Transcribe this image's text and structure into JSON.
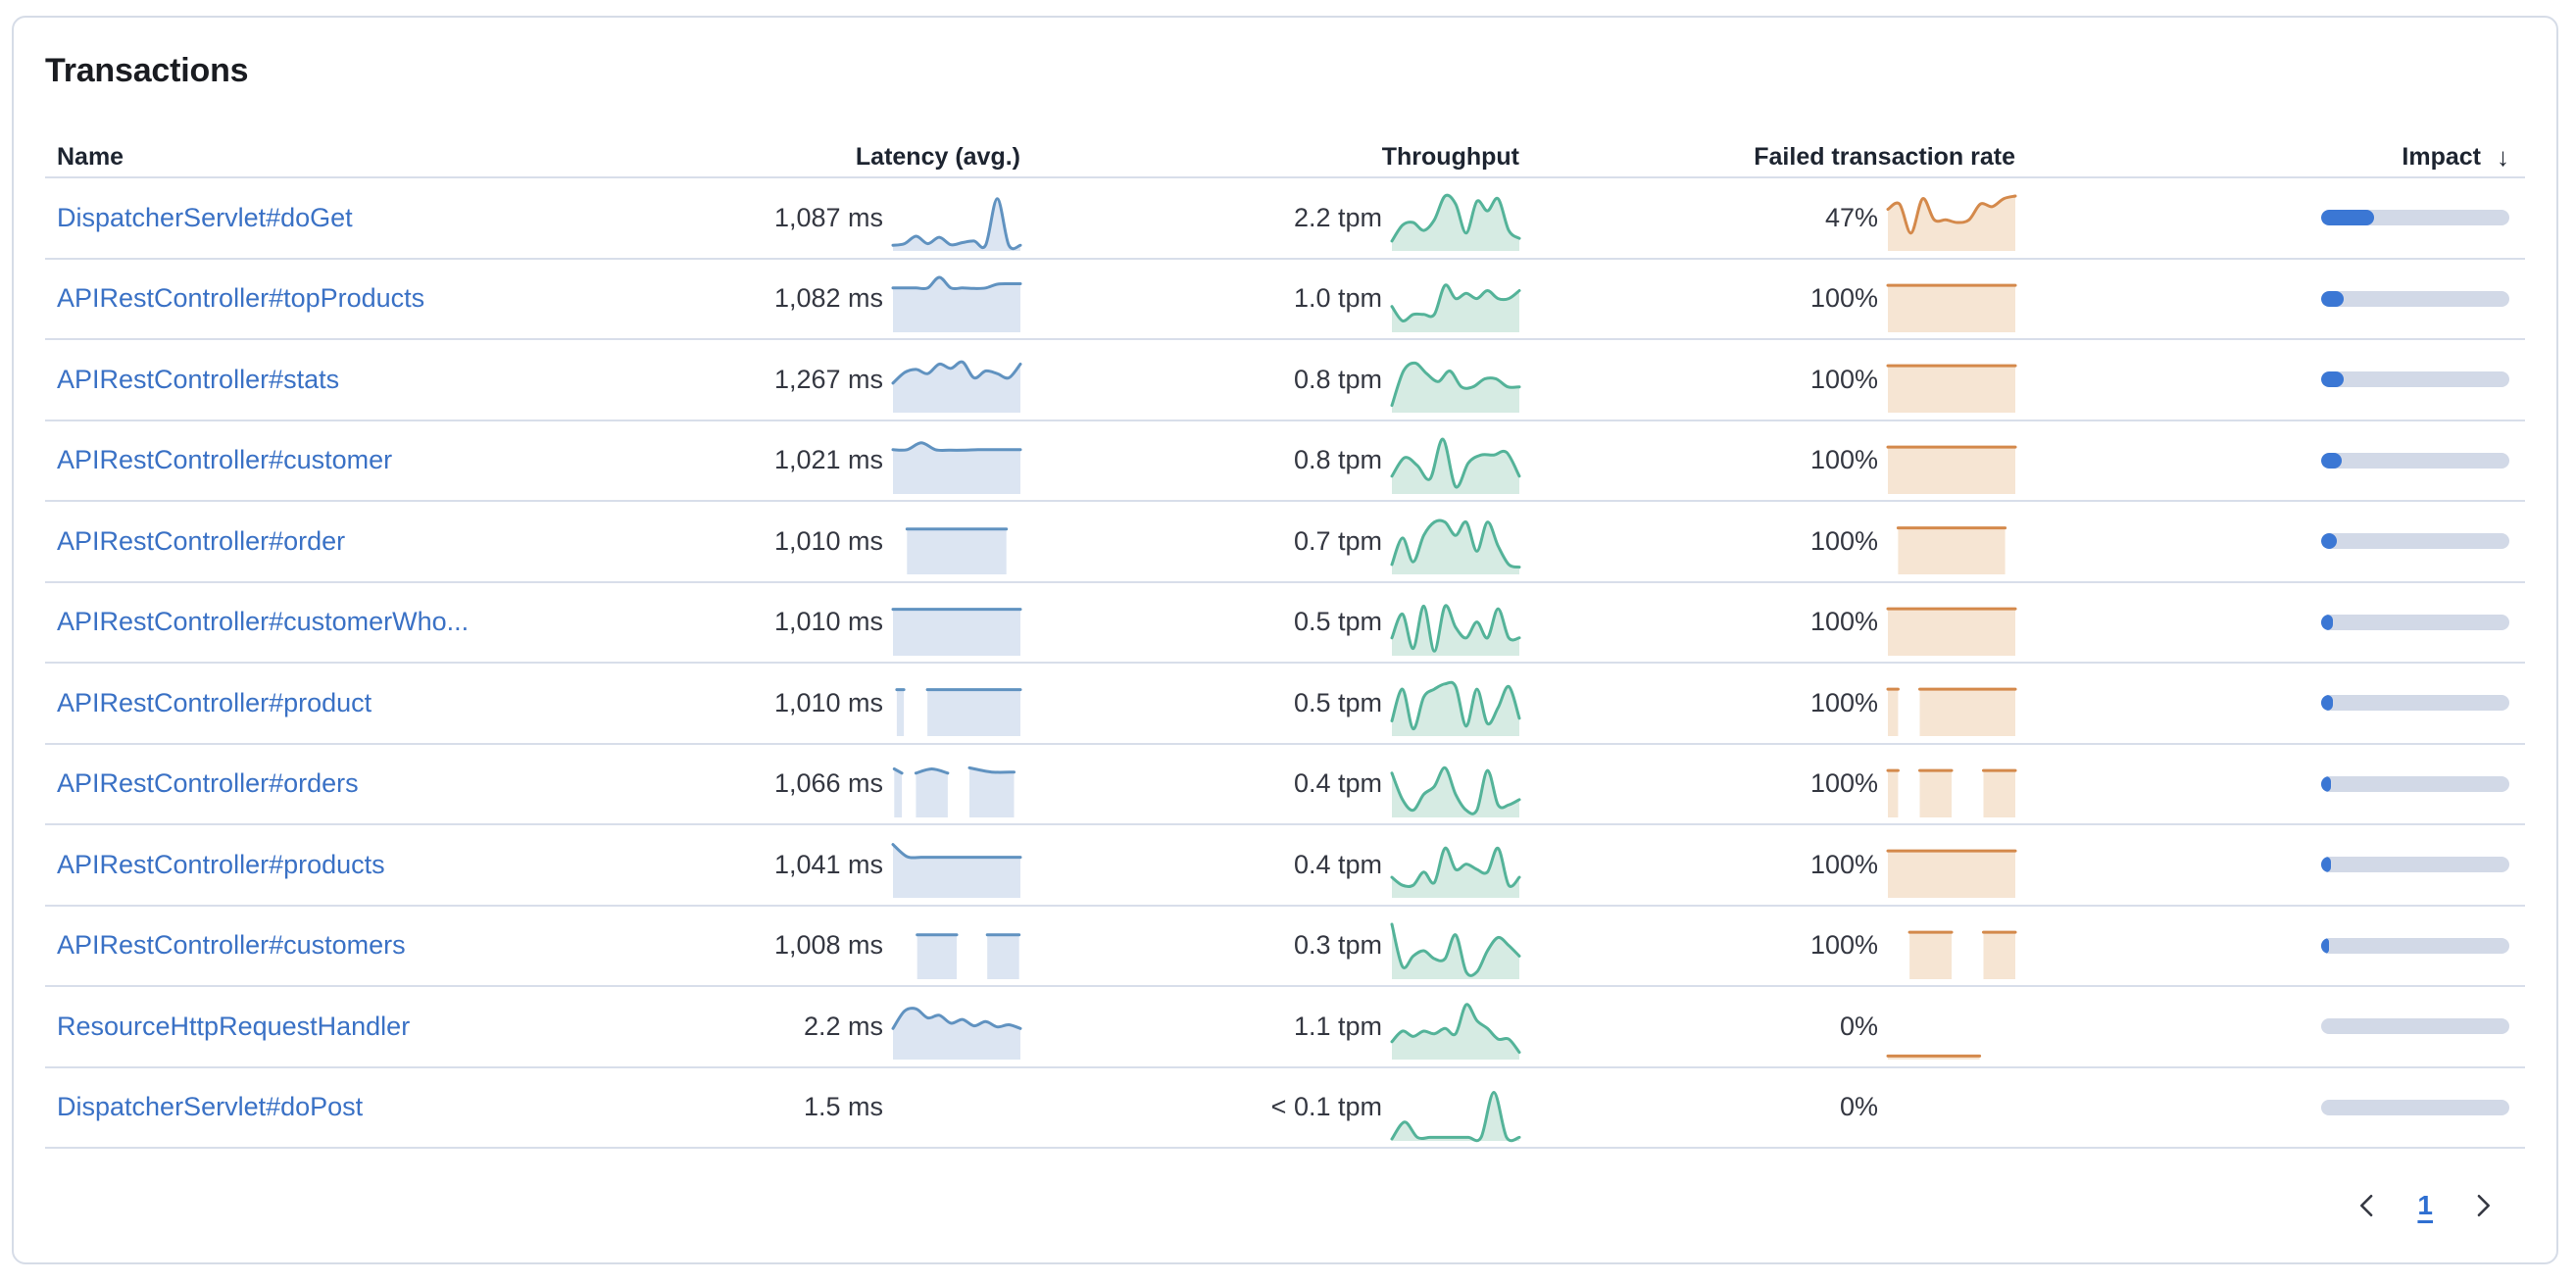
{
  "panel": {
    "title": "Transactions"
  },
  "table": {
    "columns": [
      {
        "label": "Name"
      },
      {
        "label": "Latency (avg.)"
      },
      {
        "label": "Throughput"
      },
      {
        "label": "Failed transaction rate"
      },
      {
        "label": "Impact"
      }
    ],
    "sort_icon": "↓",
    "rows": [
      {
        "name": "DispatcherServlet#doGet",
        "latency": "1,087 ms",
        "throughput": "2.2 tpm",
        "failed_rate": "47%",
        "impact_pct": 28,
        "latency_spark": {
          "segments": [
            {
              "x0": 0,
              "x1": 1,
              "v": [
                0.07,
                0.1,
                0.24,
                0.1,
                0.22,
                0.08,
                0.12,
                0.15,
                0.07,
                0.95,
                0.07,
                0.07
              ]
            }
          ]
        },
        "throughput_spark": {
          "segments": [
            {
              "x0": 0,
              "x1": 1,
              "v": [
                0.15,
                0.45,
                0.5,
                0.35,
                0.55,
                1.0,
                0.85,
                0.3,
                0.9,
                0.72,
                0.95,
                0.35,
                0.2
              ]
            }
          ]
        },
        "failed_spark": {
          "segments": [
            {
              "x0": 0,
              "x1": 1,
              "v": [
                0.75,
                0.85,
                0.3,
                0.95,
                0.55,
                0.55,
                0.5,
                0.55,
                0.85,
                0.8,
                0.95,
                1.0
              ]
            }
          ]
        }
      },
      {
        "name": "APIRestController#topProducts",
        "latency": "1,082 ms",
        "throughput": "1.0 tpm",
        "failed_rate": "100%",
        "impact_pct": 12,
        "latency_spark": {
          "segments": [
            {
              "x0": 0,
              "x1": 1,
              "v": [
                0.8,
                0.8,
                0.8,
                0.8,
                1.0,
                0.8,
                0.8,
                0.79,
                0.8,
                0.87,
                0.88,
                0.88
              ]
            }
          ]
        },
        "throughput_spark": {
          "segments": [
            {
              "x0": 0,
              "x1": 1,
              "v": [
                0.45,
                0.18,
                0.3,
                0.3,
                0.3,
                0.85,
                0.6,
                0.7,
                0.6,
                0.75,
                0.6,
                0.6,
                0.75
              ]
            }
          ]
        },
        "failed_spark": {
          "segments": [
            {
              "x0": 0,
              "x1": 1,
              "v": [
                0.85,
                0.85
              ]
            }
          ]
        }
      },
      {
        "name": "APIRestController#stats",
        "latency": "1,267 ms",
        "throughput": "0.8 tpm",
        "failed_rate": "100%",
        "impact_pct": 12,
        "latency_spark": {
          "segments": [
            {
              "x0": 0,
              "x1": 1,
              "v": [
                0.52,
                0.72,
                0.78,
                0.7,
                0.88,
                0.8,
                0.92,
                0.62,
                0.75,
                0.7,
                0.62,
                0.88
              ]
            }
          ]
        },
        "throughput_spark": {
          "segments": [
            {
              "x0": 0,
              "x1": 1,
              "v": [
                0.1,
                0.75,
                0.9,
                0.7,
                0.55,
                0.75,
                0.45,
                0.45,
                0.6,
                0.6,
                0.45,
                0.45
              ]
            }
          ]
        },
        "failed_spark": {
          "segments": [
            {
              "x0": 0,
              "x1": 1,
              "v": [
                0.85,
                0.85
              ]
            }
          ]
        }
      },
      {
        "name": "APIRestController#customer",
        "latency": "1,021 ms",
        "throughput": "0.8 tpm",
        "failed_rate": "100%",
        "impact_pct": 11,
        "latency_spark": {
          "segments": [
            {
              "x0": 0,
              "x1": 1,
              "v": [
                0.8,
                0.8,
                0.93,
                0.8,
                0.79,
                0.79,
                0.8,
                0.8,
                0.8,
                0.8
              ]
            }
          ]
        },
        "throughput_spark": {
          "segments": [
            {
              "x0": 0,
              "x1": 1,
              "v": [
                0.3,
                0.65,
                0.5,
                0.25,
                1.0,
                0.1,
                0.55,
                0.7,
                0.7,
                0.75,
                0.3
              ]
            }
          ]
        },
        "failed_spark": {
          "segments": [
            {
              "x0": 0,
              "x1": 1,
              "v": [
                0.85,
                0.85
              ]
            }
          ]
        }
      },
      {
        "name": "APIRestController#order",
        "latency": "1,010 ms",
        "throughput": "0.7 tpm",
        "failed_rate": "100%",
        "impact_pct": 8.5,
        "latency_spark": {
          "segments": [
            {
              "x0": 0.11,
              "x1": 0.89,
              "v": [
                0.82,
                0.82
              ]
            }
          ]
        },
        "throughput_spark": {
          "segments": [
            {
              "x0": 0,
              "x1": 1,
              "v": [
                0.15,
                0.65,
                0.2,
                0.7,
                0.95,
                0.95,
                0.7,
                0.95,
                0.4,
                0.95,
                0.5,
                0.15,
                0.1
              ]
            }
          ]
        },
        "failed_spark": {
          "segments": [
            {
              "x0": 0.08,
              "x1": 0.92,
              "v": [
                0.84,
                0.84
              ]
            }
          ]
        }
      },
      {
        "name": "APIRestController#customerWho...",
        "latency": "1,010 ms",
        "throughput": "0.5 tpm",
        "failed_rate": "100%",
        "impact_pct": 6,
        "latency_spark": {
          "segments": [
            {
              "x0": 0,
              "x1": 1,
              "v": [
                0.84,
                0.84
              ]
            }
          ]
        },
        "throughput_spark": {
          "segments": [
            {
              "x0": 0,
              "x1": 1,
              "v": [
                0.3,
                0.75,
                0.1,
                0.9,
                0.05,
                0.9,
                0.5,
                0.3,
                0.6,
                0.3,
                0.85,
                0.3,
                0.3
              ]
            }
          ]
        },
        "failed_spark": {
          "segments": [
            {
              "x0": 0,
              "x1": 1,
              "v": [
                0.85,
                0.85
              ]
            }
          ]
        }
      },
      {
        "name": "APIRestController#product",
        "latency": "1,010 ms",
        "throughput": "0.5 tpm",
        "failed_rate": "100%",
        "impact_pct": 6,
        "latency_spark": {
          "segments": [
            {
              "x0": 0.03,
              "x1": 0.085,
              "v": [
                0.84,
                0.84
              ]
            },
            {
              "x0": 0.27,
              "x1": 1,
              "v": [
                0.84,
                0.84
              ]
            }
          ]
        },
        "throughput_spark": {
          "segments": [
            {
              "x0": 0,
              "x1": 1,
              "v": [
                0.25,
                0.85,
                0.1,
                0.7,
                0.85,
                0.95,
                0.9,
                0.15,
                0.85,
                0.2,
                0.5,
                0.9,
                0.3
              ]
            }
          ]
        },
        "failed_spark": {
          "segments": [
            {
              "x0": 0,
              "x1": 0.08,
              "v": [
                0.85,
                0.85
              ]
            },
            {
              "x0": 0.25,
              "x1": 1,
              "v": [
                0.85,
                0.85
              ]
            }
          ]
        }
      },
      {
        "name": "APIRestController#orders",
        "latency": "1,066 ms",
        "throughput": "0.4 tpm",
        "failed_rate": "100%",
        "impact_pct": 5.2,
        "latency_spark": {
          "segments": [
            {
              "x0": 0.01,
              "x1": 0.07,
              "v": [
                0.88,
                0.8
              ]
            },
            {
              "x0": 0.18,
              "x1": 0.43,
              "v": [
                0.8,
                0.88,
                0.8
              ]
            },
            {
              "x0": 0.6,
              "x1": 0.95,
              "v": [
                0.9,
                0.82,
                0.82
              ]
            }
          ]
        },
        "throughput_spark": {
          "segments": [
            {
              "x0": 0,
              "x1": 1,
              "v": [
                0.8,
                0.3,
                0.1,
                0.4,
                0.55,
                0.9,
                0.4,
                0.1,
                0.1,
                0.85,
                0.2,
                0.2,
                0.3
              ]
            }
          ]
        },
        "failed_spark": {
          "segments": [
            {
              "x0": 0,
              "x1": 0.08,
              "v": [
                0.85,
                0.85
              ]
            },
            {
              "x0": 0.25,
              "x1": 0.5,
              "v": [
                0.85,
                0.85
              ]
            },
            {
              "x0": 0.75,
              "x1": 1,
              "v": [
                0.85,
                0.85
              ]
            }
          ]
        }
      },
      {
        "name": "APIRestController#products",
        "latency": "1,041 ms",
        "throughput": "0.4 tpm",
        "failed_rate": "100%",
        "impact_pct": 5.2,
        "latency_spark": {
          "segments": [
            {
              "x0": 0,
              "x1": 1,
              "v": [
                0.97,
                0.74,
                0.73,
                0.73,
                0.73,
                0.73,
                0.73,
                0.73,
                0.73,
                0.73
              ]
            }
          ]
        },
        "throughput_spark": {
          "segments": [
            {
              "x0": 0,
              "x1": 1,
              "v": [
                0.35,
                0.2,
                0.2,
                0.45,
                0.25,
                0.9,
                0.5,
                0.6,
                0.5,
                0.45,
                0.9,
                0.2,
                0.35
              ]
            }
          ]
        },
        "failed_spark": {
          "segments": [
            {
              "x0": 0,
              "x1": 1,
              "v": [
                0.85,
                0.85
              ]
            }
          ]
        }
      },
      {
        "name": "APIRestController#customers",
        "latency": "1,008 ms",
        "throughput": "0.3 tpm",
        "failed_rate": "100%",
        "impact_pct": 4,
        "latency_spark": {
          "segments": [
            {
              "x0": 0.19,
              "x1": 0.5,
              "v": [
                0.8,
                0.8
              ]
            },
            {
              "x0": 0.74,
              "x1": 0.99,
              "v": [
                0.8,
                0.8
              ]
            }
          ]
        },
        "throughput_spark": {
          "segments": [
            {
              "x0": 0,
              "x1": 1,
              "v": [
                1.0,
                0.2,
                0.4,
                0.5,
                0.35,
                0.35,
                0.8,
                0.1,
                0.1,
                0.5,
                0.75,
                0.6,
                0.4
              ]
            }
          ]
        },
        "failed_spark": {
          "segments": [
            {
              "x0": 0.17,
              "x1": 0.5,
              "v": [
                0.85,
                0.85
              ]
            },
            {
              "x0": 0.75,
              "x1": 1,
              "v": [
                0.85,
                0.85
              ]
            }
          ]
        }
      },
      {
        "name": "ResourceHttpRequestHandler",
        "latency": "2.2 ms",
        "throughput": "1.1 tpm",
        "failed_rate": "0%",
        "impact_pct": 0,
        "latency_spark": {
          "segments": [
            {
              "x0": 0,
              "x1": 1,
              "v": [
                0.55,
                0.88,
                0.92,
                0.75,
                0.8,
                0.65,
                0.72,
                0.6,
                0.68,
                0.58,
                0.62,
                0.55
              ]
            }
          ]
        },
        "throughput_spark": {
          "segments": [
            {
              "x0": 0,
              "x1": 1,
              "v": [
                0.3,
                0.5,
                0.4,
                0.5,
                0.45,
                0.55,
                0.45,
                1.0,
                0.7,
                0.55,
                0.35,
                0.35,
                0.1
              ]
            }
          ]
        },
        "failed_spark": {
          "segments": [
            {
              "x0": 0,
              "x1": 0.72,
              "v": [
                0.03,
                0.03
              ]
            }
          ]
        }
      },
      {
        "name": "DispatcherServlet#doPost",
        "latency": "1.5 ms",
        "throughput": "< 0.1 tpm",
        "failed_rate": "0%",
        "impact_pct": 0,
        "latency_spark": null,
        "throughput_spark": {
          "segments": [
            {
              "x0": 0,
              "x1": 1,
              "v": [
                0.0,
                0.32,
                0.03,
                0.03,
                0.03,
                0.03,
                0.03,
                0.03,
                0.88,
                0.03,
                0.03
              ]
            }
          ]
        },
        "failed_spark": null
      }
    ]
  },
  "pagination": {
    "current_page": "1"
  },
  "colors": {
    "latency_line": "#6092C0",
    "latency_fill": "#DCE5F2",
    "throughput_line": "#54B399",
    "throughput_fill": "#D6EBE3",
    "failed_line": "#D4894B",
    "failed_fill": "#F6E5D3",
    "impact_fill": "#3B77D4",
    "impact_track": "#D2D9E7",
    "link": "#3A71C5",
    "separator": "#D8DEEA"
  }
}
